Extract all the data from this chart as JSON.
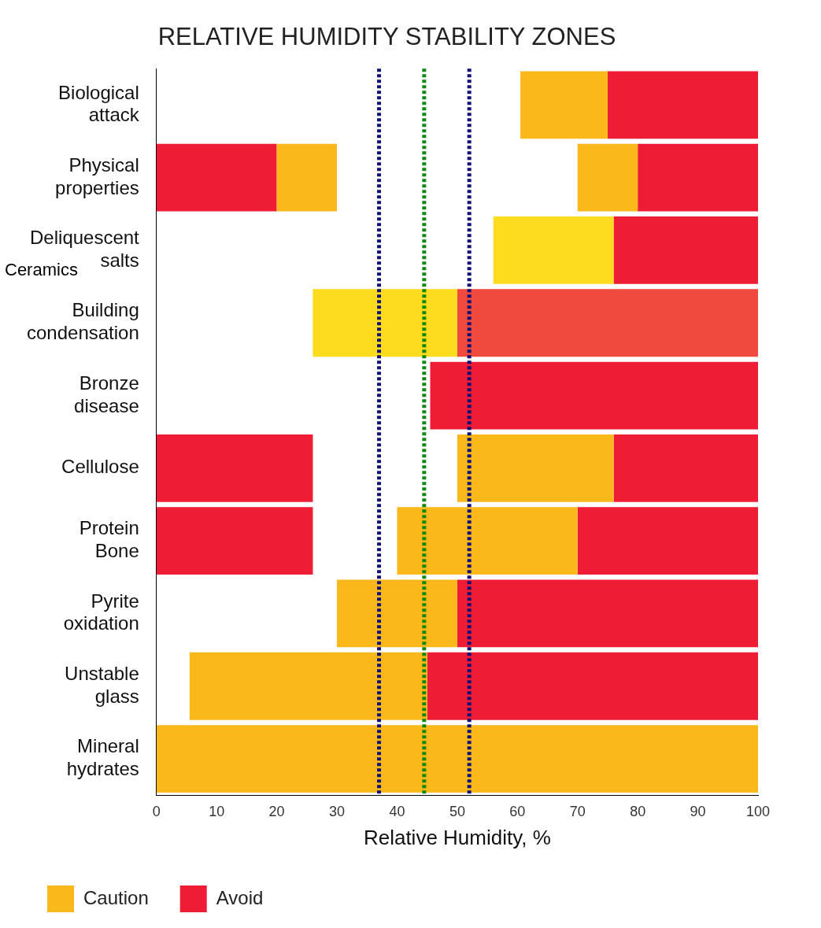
{
  "chart_data": {
    "type": "bar",
    "orientation": "horizontal",
    "title": "RELATIVE HUMIDITY STABILITY ZONES",
    "xlabel": "Relative Humidity, %",
    "categories": [
      "Biological attack",
      "Physical properties",
      "Deliquescent salts",
      "Building condensation",
      "Bronze disease",
      "Cellulose",
      "Protein Bone",
      "Pyrite oxidation",
      "Unstable glass",
      "Mineral hydrates"
    ],
    "series": [
      {
        "name": "Caution",
        "color": "#fbb81b",
        "base": [
          null,
          20,
          null,
          null,
          null,
          null,
          null,
          null,
          null,
          null
        ],
        "values": [
          null,
          10,
          null,
          null,
          null,
          null,
          null,
          null,
          null,
          null
        ]
      },
      {
        "name": "Avoid",
        "color": "#ee1d35",
        "base": [
          null,
          0,
          null,
          null,
          null,
          0,
          0,
          null,
          null,
          null
        ],
        "values": [
          null,
          20,
          null,
          null,
          null,
          26,
          26,
          null,
          null,
          null
        ]
      },
      {
        "colors": [
          "#fbb81b",
          "#fbb81b",
          "#fddb1e",
          "#fddb1e",
          "#fbb81b",
          "#fbb81b",
          "#fbb81b",
          "#fbb81b",
          "#fbb81b",
          "#fbb81b"
        ],
        "base": [
          60.5,
          70,
          56,
          26,
          null,
          50,
          40,
          30,
          5.5,
          0
        ],
        "values": [
          14.5,
          10,
          20,
          24,
          null,
          26,
          30,
          20,
          39.5,
          100
        ]
      },
      {
        "colors": [
          "#ee1d35",
          "#ee1d35",
          "#ee1d35",
          "#f0493d",
          "#ee1d35",
          "#ee1d35",
          "#ee1d35",
          "#ee1d35",
          "#ee1d35",
          "#ee1d35"
        ],
        "base": [
          75,
          80,
          76,
          50,
          45.5,
          76,
          70,
          50,
          45,
          null
        ],
        "values": [
          25,
          20,
          24,
          50,
          54.5,
          24,
          30,
          50,
          55,
          null
        ]
      }
    ],
    "xlim": [
      0,
      100
    ],
    "xticks": [
      0,
      10,
      20,
      30,
      40,
      50,
      60,
      70,
      80,
      90,
      100
    ],
    "grid": false,
    "legend": "bottom left",
    "ref_lines": [
      {
        "axis": "x",
        "value": 37,
        "color": "#10107a",
        "line_style": "dotted"
      },
      {
        "axis": "x",
        "value": 44.5,
        "color": "#118811",
        "line_style": "dotted"
      },
      {
        "axis": "x",
        "value": 52,
        "color": "#10107a",
        "line_style": "dotted"
      }
    ],
    "annotations": [
      "Ceramics"
    ]
  }
}
